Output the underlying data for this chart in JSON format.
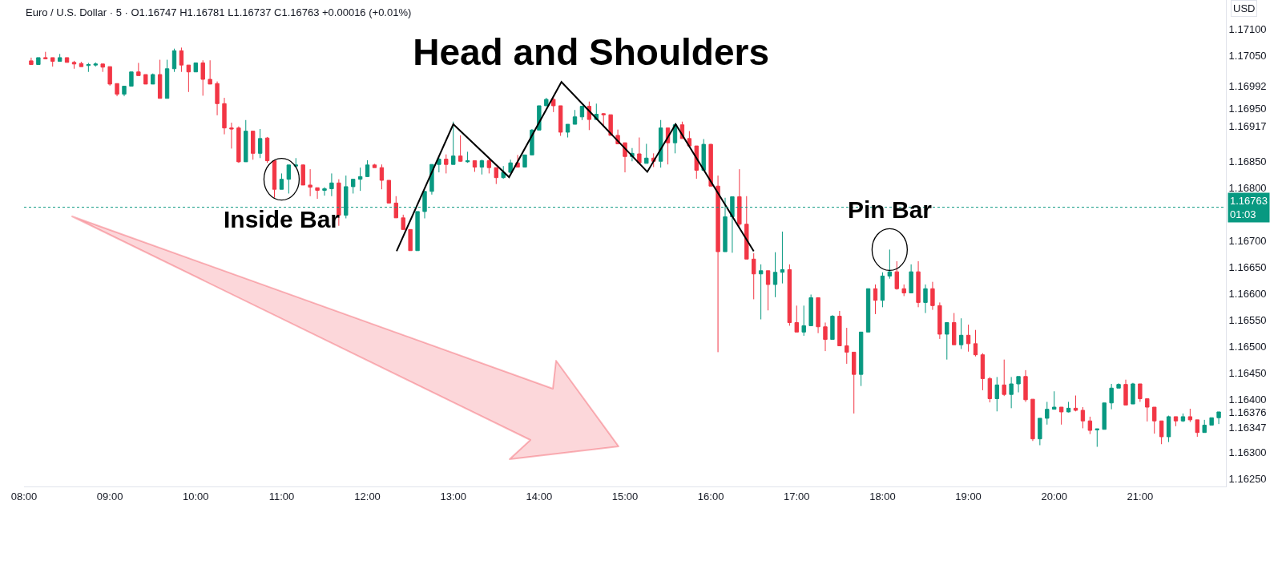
{
  "chart_data": {
    "type": "candlestick",
    "title": "Head and Shoulders",
    "subtitle": "Euro / U.S. Dollar · 5 · O1.16747 H1.16781 L1.16737 C1.16763 +0.00016 (+0.01%)",
    "xlim": [
      8,
      22
    ],
    "xticks": [
      {
        "value": 8,
        "label": "08:00"
      },
      {
        "value": 9,
        "label": "09:00"
      },
      {
        "value": 10,
        "label": "10:00"
      },
      {
        "value": 11,
        "label": "11:00"
      },
      {
        "value": 12,
        "label": "12:00"
      },
      {
        "value": 13,
        "label": "13:00"
      },
      {
        "value": 14,
        "label": "14:00"
      },
      {
        "value": 15,
        "label": "15:00"
      },
      {
        "value": 16,
        "label": "16:00"
      },
      {
        "value": 17,
        "label": "17:00"
      },
      {
        "value": 18,
        "label": "18:00"
      },
      {
        "value": 19,
        "label": "19:00"
      },
      {
        "value": 20,
        "label": "20:00"
      },
      {
        "value": 21,
        "label": "21:00"
      }
    ],
    "ylim": [
      1.16235,
      1.17155
    ],
    "yticks": [
      {
        "value": 1.1625,
        "label": "1.16250"
      },
      {
        "value": 1.163,
        "label": "1.16300"
      },
      {
        "value": 1.16347,
        "label": "1.16347"
      },
      {
        "value": 1.16376,
        "label": "1.16376"
      },
      {
        "value": 1.16917,
        "label": "1.16917"
      },
      {
        "value": 1.16992,
        "label": "1.16992"
      },
      {
        "value": 1.164,
        "label": "1.16400"
      },
      {
        "value": 1.1645,
        "label": "1.16450"
      },
      {
        "value": 1.165,
        "label": "1.16500"
      },
      {
        "value": 1.1655,
        "label": "1.16550"
      },
      {
        "value": 1.166,
        "label": "1.16600"
      },
      {
        "value": 1.1665,
        "label": "1.16650"
      },
      {
        "value": 1.167,
        "label": "1.16700"
      },
      {
        "value": 1.168,
        "label": "1.16800"
      },
      {
        "value": 1.1685,
        "label": "1.16850"
      },
      {
        "value": 1.1695,
        "label": "1.16950"
      },
      {
        "value": 1.1705,
        "label": "1.17050"
      },
      {
        "value": 1.171,
        "label": "1.17100"
      }
    ],
    "marker": "none",
    "line_style": "solid",
    "series": [
      {
        "type": "line",
        "color": "#000000",
        "x": [
          12.34,
          13.0,
          13.65,
          14.26,
          15.26,
          15.59,
          16.5
        ],
        "values": [
          1.1668,
          1.1692,
          1.1682,
          1.17,
          1.1683,
          1.1692,
          1.1668
        ]
      },
      {
        "colors": [
          "#f23645",
          "#089981",
          "#f23645",
          "#f23645",
          "#089981",
          "#f23645",
          "#f23645",
          "#f23645",
          "#089981",
          "#089981",
          "#f23645",
          "#f23645",
          "#f23645",
          "#089981",
          "#089981",
          "#f23645",
          "#f23645",
          "#089981",
          "#f23645",
          "#089981",
          "#089981",
          "#f23645",
          "#f23645",
          "#089981",
          "#f23645",
          "#f23645",
          "#f23645",
          "#f23645",
          "#f23645",
          "#f23645",
          "#089981",
          "#f23645",
          "#089981",
          "#f23645",
          "#f23645",
          "#089981",
          "#089981",
          "#089981",
          "#f23645",
          "#f23645",
          "#f23645",
          "#089981",
          "#089981",
          "#f23645",
          "#089981",
          "#089981",
          "#089981",
          "#089981",
          "#f23645",
          "#f23645",
          "#f23645",
          "#f23645",
          "#f23645",
          "#f23645",
          "#089981",
          "#089981",
          "#089981",
          "#089981",
          "#f23645",
          "#089981",
          "#f23645",
          "#089981",
          "#f23645",
          "#089981",
          "#f23645",
          "#f23645",
          "#089981",
          "#089981",
          "#f23645",
          "#089981",
          "#089981",
          "#089981",
          "#089981",
          "#f23645",
          "#f23645",
          "#089981",
          "#089981",
          "#089981",
          "#f23645",
          "#089981",
          "#f23645",
          "#f23645",
          "#f23645",
          "#f23645",
          "#089981",
          "#f23645",
          "#089981",
          "#f23645",
          "#089981",
          "#f23645",
          "#089981",
          "#f23645",
          "#f23645",
          "#f23645",
          "#089981",
          "#f23645",
          "#f23645",
          "#089981",
          "#089981",
          "#f23645",
          "#f23645",
          "#f23645",
          "#089981",
          "#f23645",
          "#089981",
          "#089981",
          "#f23645",
          "#f23645",
          "#089981",
          "#089981",
          "#f23645",
          "#f23645",
          "#089981",
          "#f23645",
          "#f23645",
          "#f23645",
          "#089981",
          "#089981",
          "#f23645",
          "#089981",
          "#089981",
          "#f23645",
          "#f23645",
          "#089981",
          "#f23645",
          "#089981",
          "#f23645",
          "#f23645",
          "#089981",
          "#f23645",
          "#089981",
          "#f23645",
          "#f23645",
          "#f23645",
          "#f23645",
          "#089981",
          "#f23645",
          "#089981",
          "#089981",
          "#f23645",
          "#f23645",
          "#089981",
          "#089981",
          "#089981",
          "#f23645",
          "#089981",
          "#f23645",
          "#f23645",
          "#f23645",
          "#089981",
          "#089981",
          "#089981",
          "#089981",
          "#f23645",
          "#089981",
          "#f23645",
          "#f23645",
          "#f23645",
          "#f23645",
          "#089981",
          "#f23645",
          "#089981",
          "#f23645",
          "#f23645",
          "#089981",
          "#089981",
          "#089981"
        ],
        "x": [
          8.0833,
          8.1667,
          8.25,
          8.3333,
          8.4167,
          8.5,
          8.5833,
          8.6667,
          8.75,
          8.8333,
          8.9167,
          9,
          9.0833,
          9.1667,
          9.25,
          9.3333,
          9.4167,
          9.5,
          9.5833,
          9.6667,
          9.75,
          9.8333,
          9.9167,
          10,
          10.0833,
          10.1667,
          10.25,
          10.3333,
          10.4167,
          10.5,
          10.5833,
          10.6667,
          10.75,
          10.8333,
          10.9167,
          11,
          11.0833,
          11.1667,
          11.25,
          11.3333,
          11.4167,
          11.5,
          11.5833,
          11.6667,
          11.75,
          11.8333,
          11.9167,
          12,
          12.0833,
          12.1667,
          12.25,
          12.3333,
          12.4167,
          12.5,
          12.5833,
          12.6667,
          12.75,
          12.8333,
          12.9167,
          13,
          13.0833,
          13.1667,
          13.25,
          13.3333,
          13.4167,
          13.5,
          13.5833,
          13.6667,
          13.75,
          13.8333,
          13.9167,
          14,
          14.0833,
          14.1667,
          14.25,
          14.3333,
          14.4167,
          14.5,
          14.5833,
          14.6667,
          14.75,
          14.8333,
          14.9167,
          15,
          15.0833,
          15.1667,
          15.25,
          15.3333,
          15.4167,
          15.5,
          15.5833,
          15.6667,
          15.75,
          15.8333,
          15.9167,
          16,
          16.0833,
          16.1667,
          16.25,
          16.3333,
          16.4167,
          16.5,
          16.5833,
          16.6667,
          16.75,
          16.8333,
          16.9167,
          17,
          17.0833,
          17.1667,
          17.25,
          17.3333,
          17.4167,
          17.5,
          17.5833,
          17.6667,
          17.75,
          17.8333,
          17.9167,
          18,
          18.0833,
          18.1667,
          18.25,
          18.3333,
          18.4167,
          18.5,
          18.5833,
          18.6667,
          18.75,
          18.8333,
          18.9167,
          19,
          19.0833,
          19.1667,
          19.25,
          19.3333,
          19.4167,
          19.5,
          19.5833,
          19.6667,
          19.75,
          19.8333,
          19.9167,
          20,
          20.0833,
          20.1667,
          20.25,
          20.3333,
          20.4167,
          20.5,
          20.5833,
          20.6667,
          20.75,
          20.8333,
          20.9167,
          21,
          21.0833,
          21.1667,
          21.25,
          21.3333,
          21.4167,
          21.5,
          21.5833,
          21.6667,
          21.75,
          21.8333,
          21.9167
        ],
        "ohlc": [
          [
            1.1704,
            1.17046,
            1.17033,
            1.17033
          ],
          [
            1.17033,
            1.17046,
            1.17033,
            1.17046
          ],
          [
            1.17046,
            1.17057,
            1.17043,
            1.17044
          ],
          [
            1.17046,
            1.17046,
            1.17029,
            1.17039
          ],
          [
            1.17039,
            1.17053,
            1.17039,
            1.17046
          ],
          [
            1.17046,
            1.17046,
            1.17037,
            1.17037
          ],
          [
            1.17037,
            1.1704,
            1.17025,
            1.17034
          ],
          [
            1.17035,
            1.17038,
            1.17029,
            1.17029
          ],
          [
            1.17031,
            1.17036,
            1.17019,
            1.17033
          ],
          [
            1.17032,
            1.17037,
            1.17029,
            1.17034
          ],
          [
            1.17034,
            1.17034,
            1.17019,
            1.17028
          ],
          [
            1.17029,
            1.17029,
            1.16993,
            1.16996
          ],
          [
            1.16997,
            1.16997,
            1.16973,
            1.16977
          ],
          [
            1.16977,
            1.16992,
            1.16973,
            1.16992
          ],
          [
            1.16992,
            1.17019,
            1.16992,
            1.17019
          ],
          [
            1.17019,
            1.17036,
            1.17012,
            1.17012
          ],
          [
            1.17014,
            1.17014,
            1.16996,
            1.16996
          ],
          [
            1.16996,
            1.17016,
            1.16996,
            1.17014
          ],
          [
            1.17014,
            1.17042,
            1.16969,
            1.16969
          ],
          [
            1.16969,
            1.17042,
            1.16969,
            1.17025
          ],
          [
            1.17025,
            1.17063,
            1.17019,
            1.17059
          ],
          [
            1.17059,
            1.17065,
            1.17019,
            1.17032
          ],
          [
            1.17032,
            1.17032,
            1.16981,
            1.17019
          ],
          [
            1.17019,
            1.17036,
            1.17019,
            1.17036
          ],
          [
            1.17036,
            1.17041,
            1.16974,
            1.17005
          ],
          [
            1.17005,
            1.17041,
            1.16996,
            1.16996
          ],
          [
            1.16997,
            1.17001,
            1.16937,
            1.16959
          ],
          [
            1.16959,
            1.1697,
            1.16901,
            1.16913
          ],
          [
            1.16913,
            1.16923,
            1.16874,
            1.16911
          ],
          [
            1.16913,
            1.16916,
            1.16847,
            1.16849
          ],
          [
            1.16849,
            1.16928,
            1.16849,
            1.16907
          ],
          [
            1.16907,
            1.16907,
            1.16853,
            1.16865
          ],
          [
            1.16865,
            1.16911,
            1.16856,
            1.16893
          ],
          [
            1.16894,
            1.16896,
            1.16847,
            1.16851
          ],
          [
            1.16851,
            1.16851,
            1.16781,
            1.16797
          ],
          [
            1.16797,
            1.16827,
            1.16797,
            1.16816
          ],
          [
            1.16816,
            1.16843,
            1.16789,
            1.16843
          ],
          [
            1.16841,
            1.16856,
            1.16838,
            1.16843
          ],
          [
            1.16843,
            1.16844,
            1.16805,
            1.16805
          ],
          [
            1.16805,
            1.16835,
            1.16784,
            1.16801
          ],
          [
            1.168,
            1.168,
            1.16779,
            1.16795
          ],
          [
            1.16795,
            1.16801,
            1.16785,
            1.16798
          ],
          [
            1.16798,
            1.16827,
            1.16784,
            1.16809
          ],
          [
            1.16809,
            1.16816,
            1.16728,
            1.16748
          ],
          [
            1.16748,
            1.16823,
            1.16742,
            1.16802
          ],
          [
            1.16802,
            1.16816,
            1.16789,
            1.16816
          ],
          [
            1.16816,
            1.16838,
            1.16794,
            1.16821
          ],
          [
            1.16821,
            1.16852,
            1.1682,
            1.16843
          ],
          [
            1.16843,
            1.16845,
            1.16838,
            1.16838
          ],
          [
            1.16838,
            1.16844,
            1.16797,
            1.16814
          ],
          [
            1.16814,
            1.16814,
            1.16771,
            1.16771
          ],
          [
            1.16771,
            1.16784,
            1.16743,
            1.16743
          ],
          [
            1.16743,
            1.16749,
            1.16721,
            1.16721
          ],
          [
            1.16721,
            1.16721,
            1.16681,
            1.16681
          ],
          [
            1.16681,
            1.16755,
            1.16681,
            1.16755
          ],
          [
            1.16755,
            1.16793,
            1.16742,
            1.16793
          ],
          [
            1.16793,
            1.16844,
            1.16787,
            1.16844
          ],
          [
            1.16844,
            1.16857,
            1.16829,
            1.16854
          ],
          [
            1.16854,
            1.16863,
            1.16827,
            1.16844
          ],
          [
            1.16844,
            1.16925,
            1.16844,
            1.1686
          ],
          [
            1.1686,
            1.16899,
            1.16849,
            1.1685
          ],
          [
            1.16849,
            1.16868,
            1.16847,
            1.16851
          ],
          [
            1.16851,
            1.16851,
            1.1683,
            1.16839
          ],
          [
            1.16839,
            1.16853,
            1.16825,
            1.16851
          ],
          [
            1.16851,
            1.16855,
            1.16827,
            1.16838
          ],
          [
            1.16838,
            1.16838,
            1.16807,
            1.16819
          ],
          [
            1.16819,
            1.16841,
            1.16817,
            1.16829
          ],
          [
            1.16829,
            1.16853,
            1.16829,
            1.16847
          ],
          [
            1.16847,
            1.16862,
            1.16839,
            1.16839
          ],
          [
            1.16839,
            1.16862,
            1.16839,
            1.16862
          ],
          [
            1.16862,
            1.16911,
            1.16862,
            1.16909
          ],
          [
            1.16909,
            1.16955,
            1.16909,
            1.16955
          ],
          [
            1.16955,
            1.1697,
            1.16955,
            1.16967
          ],
          [
            1.16967,
            1.1697,
            1.16943,
            1.16955
          ],
          [
            1.16955,
            1.16955,
            1.16898,
            1.16905
          ],
          [
            1.16905,
            1.1692,
            1.16895,
            1.1692
          ],
          [
            1.1692,
            1.16947,
            1.1692,
            1.16934
          ],
          [
            1.16934,
            1.16954,
            1.16928,
            1.16954
          ],
          [
            1.16954,
            1.16963,
            1.16909,
            1.16929
          ],
          [
            1.16929,
            1.16959,
            1.16928,
            1.16939
          ],
          [
            1.1694,
            1.16941,
            1.16917,
            1.16938
          ],
          [
            1.16938,
            1.16938,
            1.16899,
            1.16899
          ],
          [
            1.16899,
            1.1691,
            1.16883,
            1.16883
          ],
          [
            1.16885,
            1.16885,
            1.16829,
            1.16859
          ],
          [
            1.16859,
            1.16875,
            1.1685,
            1.16865
          ],
          [
            1.16864,
            1.16895,
            1.16844,
            1.16847
          ],
          [
            1.16846,
            1.16883,
            1.16846,
            1.16856
          ],
          [
            1.16856,
            1.16865,
            1.16839,
            1.1685
          ],
          [
            1.1685,
            1.16928,
            1.16838,
            1.16913
          ],
          [
            1.16913,
            1.16913,
            1.16844,
            1.16885
          ],
          [
            1.16885,
            1.16921,
            1.16865,
            1.16919
          ],
          [
            1.16919,
            1.16925,
            1.16893,
            1.16893
          ],
          [
            1.16893,
            1.16907,
            1.16879,
            1.16879
          ],
          [
            1.16879,
            1.16879,
            1.16817,
            1.16833
          ],
          [
            1.16833,
            1.16892,
            1.16833,
            1.16882
          ],
          [
            1.16882,
            1.16883,
            1.16803,
            1.16803
          ],
          [
            1.16803,
            1.16823,
            1.16489,
            1.16679
          ],
          [
            1.16679,
            1.16781,
            1.16679,
            1.16745
          ],
          [
            1.16745,
            1.16783,
            1.16677,
            1.16783
          ],
          [
            1.16783,
            1.16835,
            1.16727,
            1.16731
          ],
          [
            1.16731,
            1.16784,
            1.16665,
            1.16665
          ],
          [
            1.16665,
            1.16676,
            1.16589,
            1.16637
          ],
          [
            1.16637,
            1.16655,
            1.16551,
            1.16643
          ],
          [
            1.16643,
            1.16643,
            1.16568,
            1.16617
          ],
          [
            1.16617,
            1.16678,
            1.16593,
            1.1664
          ],
          [
            1.1664,
            1.16717,
            1.16619,
            1.16645
          ],
          [
            1.16645,
            1.16655,
            1.16539,
            1.16545
          ],
          [
            1.16545,
            1.16577,
            1.16527,
            1.16527
          ],
          [
            1.16527,
            1.16577,
            1.1652,
            1.16539
          ],
          [
            1.16539,
            1.16598,
            1.16539,
            1.16592
          ],
          [
            1.16592,
            1.16592,
            1.16525,
            1.16537
          ],
          [
            1.16537,
            1.16545,
            1.16491,
            1.16513
          ],
          [
            1.16513,
            1.16559,
            1.16513,
            1.16557
          ],
          [
            1.16557,
            1.16567,
            1.16501,
            1.16501
          ],
          [
            1.16501,
            1.16535,
            1.16467,
            1.16489
          ],
          [
            1.16489,
            1.16489,
            1.16373,
            1.16447
          ],
          [
            1.16447,
            1.16527,
            1.16425,
            1.16527
          ],
          [
            1.16527,
            1.16609,
            1.16527,
            1.16609
          ],
          [
            1.16609,
            1.16617,
            1.16561,
            1.16587
          ],
          [
            1.16587,
            1.1664,
            1.16574,
            1.16633
          ],
          [
            1.16633,
            1.16683,
            1.16628,
            1.16641
          ],
          [
            1.16641,
            1.16661,
            1.16607,
            1.16609
          ],
          [
            1.16609,
            1.16617,
            1.16595,
            1.16601
          ],
          [
            1.16601,
            1.16655,
            1.16601,
            1.16641
          ],
          [
            1.16641,
            1.16661,
            1.16574,
            1.16583
          ],
          [
            1.16583,
            1.16617,
            1.16563,
            1.16609
          ],
          [
            1.16609,
            1.16622,
            1.16569,
            1.16577
          ],
          [
            1.16577,
            1.16583,
            1.16514,
            1.16523
          ],
          [
            1.16523,
            1.16545,
            1.16475,
            1.16545
          ],
          [
            1.16545,
            1.16563,
            1.16503,
            1.16503
          ],
          [
            1.16503,
            1.16553,
            1.16495,
            1.16521
          ],
          [
            1.16521,
            1.16541,
            1.1649,
            1.16505
          ],
          [
            1.16505,
            1.16531,
            1.16481,
            1.16484
          ],
          [
            1.16484,
            1.16487,
            1.16417,
            1.16439
          ],
          [
            1.16439,
            1.16442,
            1.16394,
            1.16401
          ],
          [
            1.16401,
            1.16442,
            1.16377,
            1.16427
          ],
          [
            1.16427,
            1.16475,
            1.16406,
            1.16409
          ],
          [
            1.16409,
            1.16442,
            1.16383,
            1.16429
          ],
          [
            1.16429,
            1.16443,
            1.16413,
            1.16443
          ],
          [
            1.16443,
            1.16455,
            1.16395,
            1.16399
          ],
          [
            1.164,
            1.164,
            1.16321,
            1.16325
          ],
          [
            1.16325,
            1.16364,
            1.16313,
            1.16364
          ],
          [
            1.16364,
            1.16395,
            1.16352,
            1.16381
          ],
          [
            1.16381,
            1.16415,
            1.16381,
            1.16385
          ],
          [
            1.16385,
            1.16385,
            1.16352,
            1.16376
          ],
          [
            1.16376,
            1.16395,
            1.16375,
            1.16383
          ],
          [
            1.16383,
            1.16407,
            1.16377,
            1.16379
          ],
          [
            1.16379,
            1.16385,
            1.16345,
            1.16359
          ],
          [
            1.16359,
            1.16367,
            1.16334,
            1.16341
          ],
          [
            1.16342,
            1.16344,
            1.1631,
            1.16344
          ],
          [
            1.16343,
            1.16393,
            1.16343,
            1.16393
          ],
          [
            1.16393,
            1.16429,
            1.16381,
            1.16421
          ],
          [
            1.16421,
            1.1643,
            1.16421,
            1.16428
          ],
          [
            1.16428,
            1.16437,
            1.16389,
            1.16389
          ],
          [
            1.16391,
            1.16431,
            1.16391,
            1.16429
          ],
          [
            1.16429,
            1.16429,
            1.16395,
            1.16401
          ],
          [
            1.16401,
            1.16401,
            1.16358,
            1.16385
          ],
          [
            1.16385,
            1.16385,
            1.16335,
            1.16359
          ],
          [
            1.16359,
            1.16359,
            1.16315,
            1.16329
          ],
          [
            1.16329,
            1.16369,
            1.16319,
            1.16367
          ],
          [
            1.16367,
            1.16367,
            1.16349,
            1.16359
          ],
          [
            1.16359,
            1.16373,
            1.16357,
            1.16367
          ],
          [
            1.16367,
            1.16382,
            1.16357,
            1.16361
          ],
          [
            1.16361,
            1.16361,
            1.16329,
            1.16337
          ],
          [
            1.16337,
            1.16361,
            1.16337,
            1.16351
          ],
          [
            1.16351,
            1.16365,
            1.16351,
            1.16365
          ],
          [
            1.16365,
            1.16376,
            1.16353,
            1.16376
          ]
        ]
      }
    ],
    "ref_lines": [
      {
        "axis": "y",
        "value": 1.16763,
        "label": "1.16763\n01:03",
        "color": "#089981",
        "line_style": "dotted"
      }
    ],
    "annotations": [
      "USD",
      {
        "text": "Inside Bar",
        "x": 11,
        "y": 1.16816
      },
      {
        "text": "Pin Bar",
        "x": 18.0833,
        "y": 1.16683
      }
    ]
  }
}
